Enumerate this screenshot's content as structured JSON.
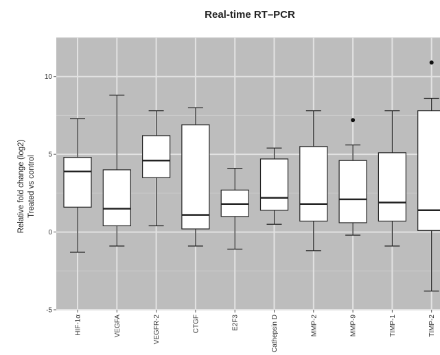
{
  "chart_data": {
    "type": "boxplot",
    "title": "Real-time RT–PCR",
    "ylabel_lines": [
      "Relative fold change (log2)",
      "Treated vs control"
    ],
    "xlabel": "",
    "ylim": [
      -5,
      12.5
    ],
    "yticks": [
      -5,
      0,
      5,
      10
    ],
    "grid": true,
    "categories": [
      "HIF-1α",
      "VEGFA",
      "VEGFR-2",
      "CTGF",
      "E2F3",
      "Cathepsin D",
      "MMP-2",
      "MMP-9",
      "TIMP-1",
      "TIMP-2"
    ],
    "boxes": [
      {
        "whisker_low": -1.3,
        "q1": 1.6,
        "median": 3.9,
        "q3": 4.8,
        "whisker_high": 7.3,
        "outliers": []
      },
      {
        "whisker_low": -0.9,
        "q1": 0.4,
        "median": 1.5,
        "q3": 4.0,
        "whisker_high": 8.8,
        "outliers": []
      },
      {
        "whisker_low": 0.4,
        "q1": 3.5,
        "median": 4.6,
        "q3": 6.2,
        "whisker_high": 7.8,
        "outliers": []
      },
      {
        "whisker_low": -0.9,
        "q1": 0.2,
        "median": 1.1,
        "q3": 6.9,
        "whisker_high": 8.0,
        "outliers": []
      },
      {
        "whisker_low": -1.1,
        "q1": 1.0,
        "median": 1.8,
        "q3": 2.7,
        "whisker_high": 4.1,
        "outliers": []
      },
      {
        "whisker_low": 0.5,
        "q1": 1.4,
        "median": 2.2,
        "q3": 4.7,
        "whisker_high": 5.4,
        "outliers": []
      },
      {
        "whisker_low": -1.2,
        "q1": 0.7,
        "median": 1.8,
        "q3": 5.5,
        "whisker_high": 7.8,
        "outliers": []
      },
      {
        "whisker_low": -0.2,
        "q1": 0.6,
        "median": 2.1,
        "q3": 4.6,
        "whisker_high": 5.6,
        "outliers": [
          7.2
        ]
      },
      {
        "whisker_low": -0.9,
        "q1": 0.7,
        "median": 1.9,
        "q3": 5.1,
        "whisker_high": 7.8,
        "outliers": []
      },
      {
        "whisker_low": -3.8,
        "q1": 0.1,
        "median": 1.4,
        "q3": 7.8,
        "whisker_high": 8.6,
        "outliers": [
          10.9
        ]
      }
    ],
    "colors": {
      "panel": "#bdbdbd",
      "grid_major": "#e2e2e2",
      "grid_minor": "#cccccc",
      "box_fill": "#ffffff",
      "box_stroke": "#222222",
      "outlier": "#111111"
    }
  }
}
